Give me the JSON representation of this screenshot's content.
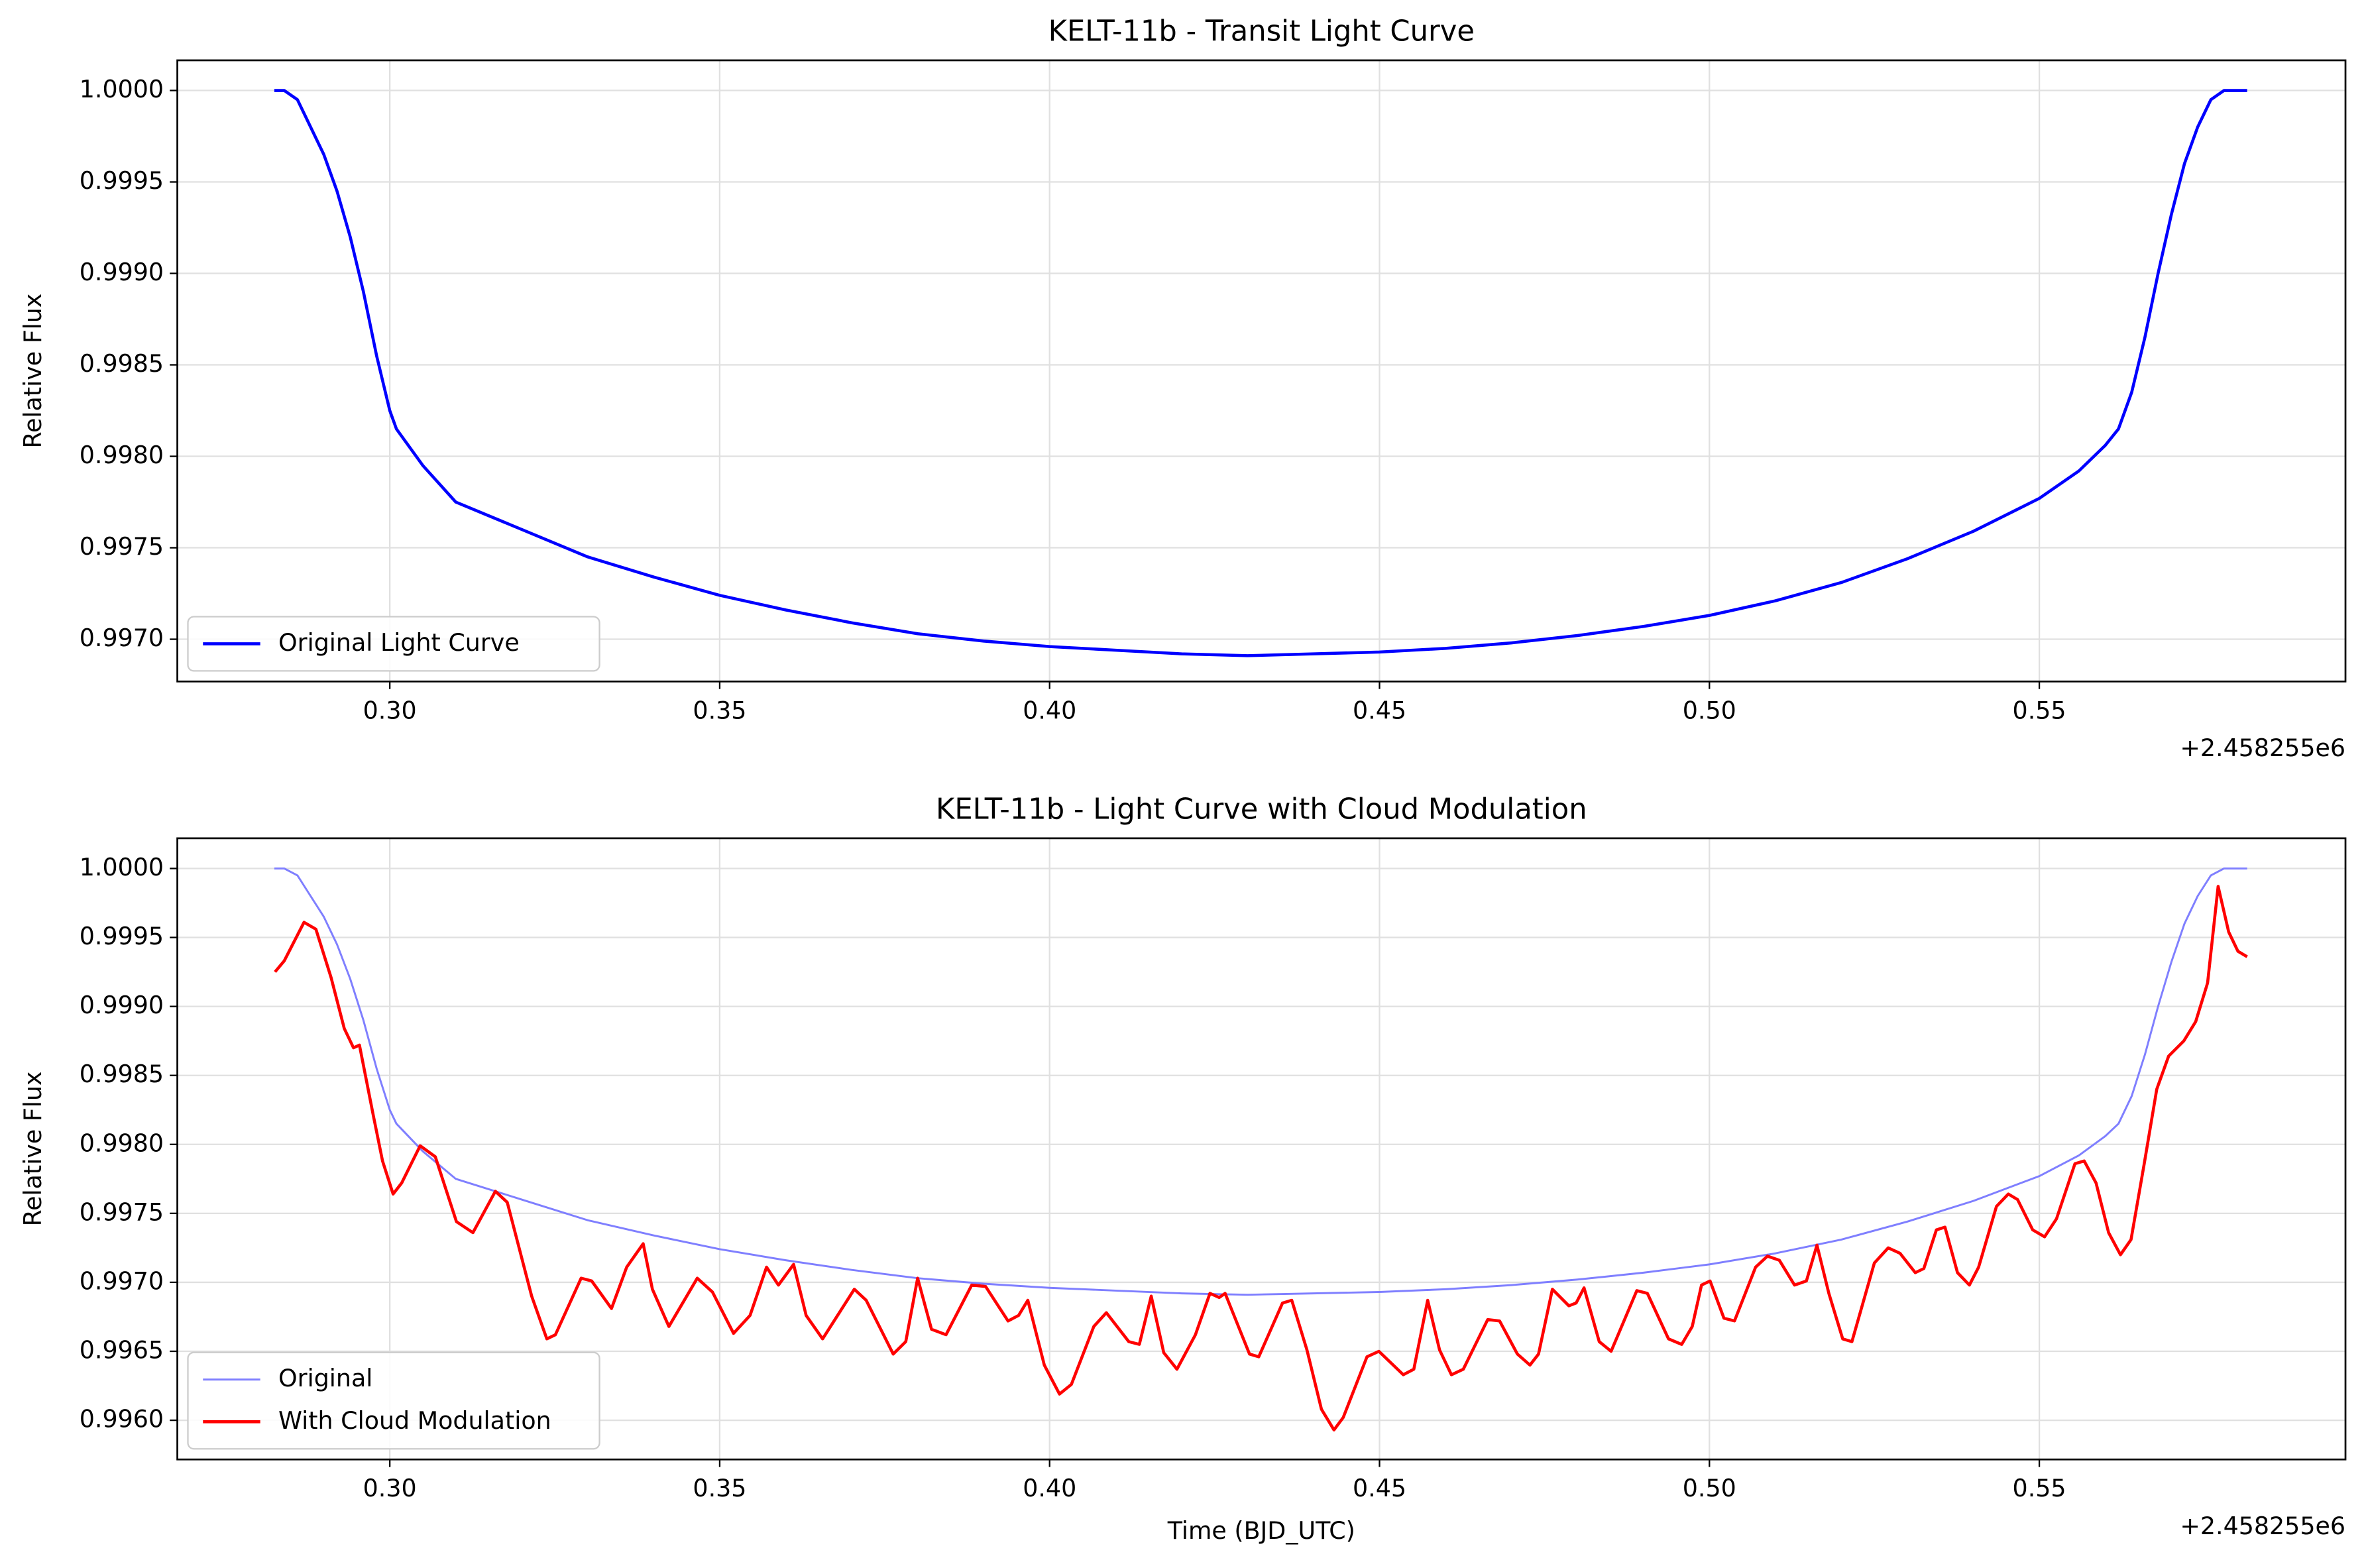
{
  "chart_data": [
    {
      "type": "line",
      "title": "KELT-11b - Transit Light Curve",
      "ylabel": "Relative Flux",
      "x_offset": "+2.458255e6",
      "xlim": [
        0.2678,
        0.5964
      ],
      "ylim": [
        0.996769,
        1.000165
      ],
      "grid": true,
      "legend": "lower left",
      "xticks": [
        {
          "value": 0.3,
          "label": "0.30"
        },
        {
          "value": 0.35,
          "label": "0.35"
        },
        {
          "value": 0.4,
          "label": "0.40"
        },
        {
          "value": 0.45,
          "label": "0.45"
        },
        {
          "value": 0.5,
          "label": "0.50"
        },
        {
          "value": 0.55,
          "label": "0.55"
        }
      ],
      "yticks": [
        {
          "value": 0.997,
          "label": "0.9970"
        },
        {
          "value": 0.9975,
          "label": "0.9975"
        },
        {
          "value": 0.998,
          "label": "0.9980"
        },
        {
          "value": 0.9985,
          "label": "0.9985"
        },
        {
          "value": 0.999,
          "label": "0.9990"
        },
        {
          "value": 0.9995,
          "label": "0.9995"
        },
        {
          "value": 1.0,
          "label": "1.0000"
        }
      ],
      "series": [
        {
          "name": "Original Light Curve",
          "color": "#0000ff",
          "linewidth": 2,
          "x": [
            0.2825,
            0.284,
            0.286,
            0.288,
            0.29,
            0.292,
            0.294,
            0.296,
            0.298,
            0.3,
            0.301,
            0.305,
            0.31,
            0.32,
            0.33,
            0.34,
            0.35,
            0.36,
            0.37,
            0.38,
            0.39,
            0.4,
            0.41,
            0.42,
            0.43,
            0.44,
            0.45,
            0.46,
            0.47,
            0.48,
            0.49,
            0.5,
            0.51,
            0.52,
            0.53,
            0.54,
            0.55,
            0.556,
            0.56,
            0.562,
            0.564,
            0.566,
            0.568,
            0.57,
            0.572,
            0.574,
            0.576,
            0.578,
            0.5815
          ],
          "values": [
            1.0,
            1.0,
            0.99995,
            0.9998,
            0.99965,
            0.99945,
            0.9992,
            0.9989,
            0.99855,
            0.99825,
            0.99815,
            0.99795,
            0.99775,
            0.9976,
            0.99745,
            0.99734,
            0.99724,
            0.99716,
            0.99709,
            0.99703,
            0.99699,
            0.99696,
            0.99694,
            0.99692,
            0.99691,
            0.99692,
            0.99693,
            0.99695,
            0.99698,
            0.99702,
            0.99707,
            0.99713,
            0.99721,
            0.99731,
            0.99744,
            0.99759,
            0.99777,
            0.99792,
            0.99806,
            0.99815,
            0.99835,
            0.99865,
            0.999,
            0.99932,
            0.9996,
            0.9998,
            0.99995,
            1.0,
            1.0
          ]
        }
      ]
    },
    {
      "type": "line",
      "title": "KELT-11b - Light Curve with Cloud Modulation",
      "ylabel": "Relative Flux",
      "xlabel": "Time (BJD_UTC)",
      "x_offset": "+2.458255e6",
      "xlim": [
        0.2678,
        0.5964
      ],
      "ylim": [
        0.995716,
        1.000219
      ],
      "grid": true,
      "legend": "lower left",
      "xticks": [
        {
          "value": 0.3,
          "label": "0.30"
        },
        {
          "value": 0.35,
          "label": "0.35"
        },
        {
          "value": 0.4,
          "label": "0.40"
        },
        {
          "value": 0.45,
          "label": "0.45"
        },
        {
          "value": 0.5,
          "label": "0.50"
        },
        {
          "value": 0.55,
          "label": "0.55"
        }
      ],
      "yticks": [
        {
          "value": 0.996,
          "label": "0.9960"
        },
        {
          "value": 0.9965,
          "label": "0.9965"
        },
        {
          "value": 0.997,
          "label": "0.9970"
        },
        {
          "value": 0.9975,
          "label": "0.9975"
        },
        {
          "value": 0.998,
          "label": "0.9980"
        },
        {
          "value": 0.9985,
          "label": "0.9985"
        },
        {
          "value": 0.999,
          "label": "0.9990"
        },
        {
          "value": 0.9995,
          "label": "0.9995"
        },
        {
          "value": 1.0,
          "label": "1.0000"
        }
      ],
      "series": [
        {
          "name": "Original",
          "color": "#7f7fff",
          "linewidth": 1.3,
          "x": [
            0.2825,
            0.284,
            0.286,
            0.288,
            0.29,
            0.292,
            0.294,
            0.296,
            0.298,
            0.3,
            0.301,
            0.305,
            0.31,
            0.32,
            0.33,
            0.34,
            0.35,
            0.36,
            0.37,
            0.38,
            0.39,
            0.4,
            0.41,
            0.42,
            0.43,
            0.44,
            0.45,
            0.46,
            0.47,
            0.48,
            0.49,
            0.5,
            0.51,
            0.52,
            0.53,
            0.54,
            0.55,
            0.556,
            0.56,
            0.562,
            0.564,
            0.566,
            0.568,
            0.57,
            0.572,
            0.574,
            0.576,
            0.578,
            0.5815
          ],
          "values": [
            1.0,
            1.0,
            0.99995,
            0.9998,
            0.99965,
            0.99945,
            0.9992,
            0.9989,
            0.99855,
            0.99825,
            0.99815,
            0.99795,
            0.99775,
            0.9976,
            0.99745,
            0.99734,
            0.99724,
            0.99716,
            0.99709,
            0.99703,
            0.99699,
            0.99696,
            0.99694,
            0.99692,
            0.99691,
            0.99692,
            0.99693,
            0.99695,
            0.99698,
            0.99702,
            0.99707,
            0.99713,
            0.99721,
            0.99731,
            0.99744,
            0.99759,
            0.99777,
            0.99792,
            0.99806,
            0.99815,
            0.99835,
            0.99865,
            0.999,
            0.99932,
            0.9996,
            0.9998,
            0.99995,
            1.0,
            1.0
          ]
        },
        {
          "name": "With Cloud Modulation",
          "color": "#ff0000",
          "linewidth": 2,
          "x": [
            0.2826,
            0.284,
            0.287,
            0.2888,
            0.2911,
            0.2931,
            0.2945,
            0.2954,
            0.2975,
            0.2989,
            0.3005,
            0.3018,
            0.3046,
            0.3069,
            0.3101,
            0.3126,
            0.316,
            0.3178,
            0.3215,
            0.3238,
            0.3251,
            0.329,
            0.3306,
            0.3336,
            0.3359,
            0.3384,
            0.3398,
            0.3423,
            0.3466,
            0.3489,
            0.3521,
            0.3546,
            0.3571,
            0.3589,
            0.3612,
            0.3631,
            0.3656,
            0.3704,
            0.3722,
            0.3763,
            0.3782,
            0.38,
            0.3821,
            0.3843,
            0.3882,
            0.3903,
            0.3937,
            0.3953,
            0.3967,
            0.3992,
            0.4015,
            0.4033,
            0.4067,
            0.4086,
            0.412,
            0.4136,
            0.4154,
            0.4173,
            0.4193,
            0.4221,
            0.4243,
            0.4257,
            0.4266,
            0.4303,
            0.4317,
            0.4353,
            0.4367,
            0.439,
            0.4412,
            0.4431,
            0.4445,
            0.4481,
            0.4499,
            0.4536,
            0.4552,
            0.4573,
            0.4591,
            0.4609,
            0.4627,
            0.4664,
            0.4682,
            0.4709,
            0.4728,
            0.4741,
            0.4762,
            0.4787,
            0.4798,
            0.481,
            0.4833,
            0.4851,
            0.489,
            0.4906,
            0.4938,
            0.4958,
            0.4974,
            0.4988,
            0.5001,
            0.5022,
            0.5038,
            0.507,
            0.5088,
            0.5106,
            0.5129,
            0.5147,
            0.5163,
            0.5181,
            0.5202,
            0.5216,
            0.525,
            0.5271,
            0.5289,
            0.5312,
            0.5325,
            0.5344,
            0.5357,
            0.5376,
            0.5394,
            0.5408,
            0.5435,
            0.5453,
            0.5467,
            0.549,
            0.5508,
            0.5526,
            0.5554,
            0.5568,
            0.5586,
            0.5605,
            0.5623,
            0.5639,
            0.5659,
            0.5678,
            0.5696,
            0.5719,
            0.5737,
            0.5755,
            0.5771,
            0.5787,
            0.5801,
            0.5815
          ],
          "values": [
            0.99925,
            0.99933,
            0.99961,
            0.99956,
            0.99921,
            0.99884,
            0.9987,
            0.99872,
            0.99821,
            0.99788,
            0.99764,
            0.99772,
            0.99799,
            0.99791,
            0.99744,
            0.99736,
            0.99766,
            0.99758,
            0.9969,
            0.99659,
            0.99662,
            0.99703,
            0.99701,
            0.99681,
            0.99711,
            0.99728,
            0.99695,
            0.99668,
            0.99703,
            0.99693,
            0.99663,
            0.99676,
            0.99711,
            0.99698,
            0.99713,
            0.99676,
            0.99659,
            0.99695,
            0.99687,
            0.99648,
            0.99657,
            0.99703,
            0.99666,
            0.99662,
            0.99698,
            0.99697,
            0.99672,
            0.99676,
            0.99687,
            0.9964,
            0.99619,
            0.99626,
            0.99668,
            0.99678,
            0.99657,
            0.99655,
            0.9969,
            0.99649,
            0.99637,
            0.99662,
            0.99692,
            0.99689,
            0.99692,
            0.99648,
            0.99646,
            0.99685,
            0.99687,
            0.99651,
            0.99608,
            0.99593,
            0.99602,
            0.99646,
            0.9965,
            0.99633,
            0.99637,
            0.99687,
            0.99651,
            0.99633,
            0.99637,
            0.99673,
            0.99672,
            0.99648,
            0.9964,
            0.99648,
            0.99695,
            0.99683,
            0.99685,
            0.99696,
            0.99657,
            0.9965,
            0.99694,
            0.99692,
            0.99659,
            0.99655,
            0.99668,
            0.99698,
            0.99701,
            0.99674,
            0.99672,
            0.99711,
            0.99719,
            0.99716,
            0.99698,
            0.99701,
            0.99727,
            0.99692,
            0.99659,
            0.99657,
            0.99714,
            0.99725,
            0.99721,
            0.99707,
            0.9971,
            0.99738,
            0.9974,
            0.99707,
            0.99698,
            0.99711,
            0.99755,
            0.99764,
            0.9976,
            0.99738,
            0.99733,
            0.99746,
            0.99786,
            0.99788,
            0.99772,
            0.99736,
            0.9972,
            0.99731,
            0.99786,
            0.9984,
            0.99864,
            0.99875,
            0.99889,
            0.99917,
            0.99987,
            0.99954,
            0.9994,
            0.99936
          ]
        }
      ]
    }
  ]
}
